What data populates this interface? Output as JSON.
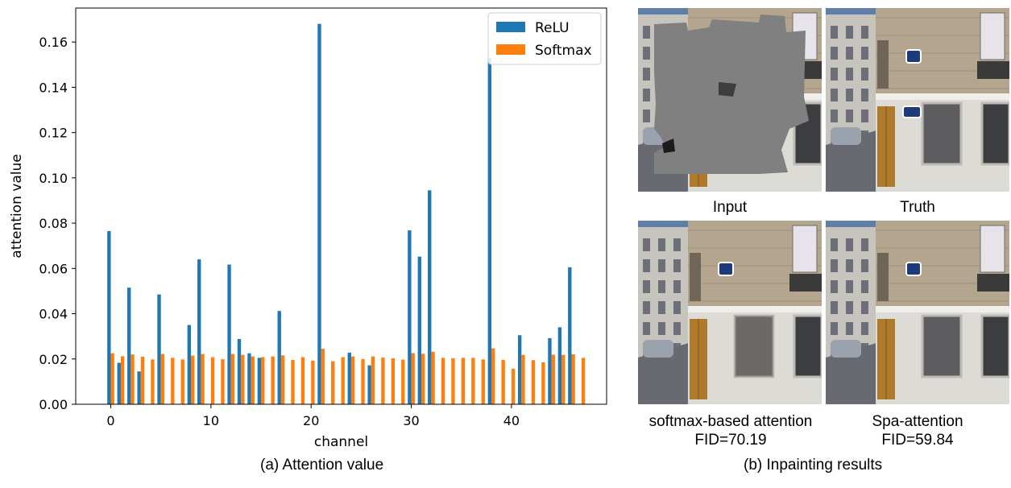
{
  "chart_data": {
    "type": "bar",
    "xlabel": "channel",
    "ylabel": "attention value",
    "xlim": [
      -3.5,
      49.5
    ],
    "ylim": [
      0,
      0.175
    ],
    "xticks": [
      0,
      10,
      20,
      30,
      40
    ],
    "yticks": [
      0.0,
      0.02,
      0.04,
      0.06,
      0.08,
      0.1,
      0.12,
      0.14,
      0.16
    ],
    "ytick_labels": [
      "0.00",
      "0.02",
      "0.04",
      "0.06",
      "0.08",
      "0.10",
      "0.12",
      "0.14",
      "0.16"
    ],
    "legend_position": "top-right",
    "series": [
      {
        "name": "ReLU",
        "color": "#1f77b4",
        "values": [
          0.0765,
          0.0183,
          0.0515,
          0.0145,
          0,
          0.0485,
          0,
          0,
          0.035,
          0.064,
          0,
          0,
          0.0617,
          0.0288,
          0.0225,
          0.0205,
          0,
          0.0412,
          0,
          0,
          0,
          0.168,
          0,
          0,
          0.0228,
          0,
          0.0172,
          0,
          0,
          0,
          0.0768,
          0.0652,
          0.0945,
          0,
          0,
          0,
          0,
          0,
          0.153,
          0,
          0,
          0.0305,
          0,
          0,
          0.0292,
          0.034,
          0.0605,
          0
        ]
      },
      {
        "name": "Softmax",
        "color": "#ff7f0e",
        "values": [
          0.0225,
          0.0212,
          0.022,
          0.021,
          0.0198,
          0.0222,
          0.0205,
          0.0198,
          0.0215,
          0.0222,
          0.0208,
          0.0199,
          0.0222,
          0.0218,
          0.0211,
          0.0208,
          0.0211,
          0.0216,
          0.0196,
          0.0208,
          0.0193,
          0.0245,
          0.019,
          0.0208,
          0.0211,
          0.02,
          0.0211,
          0.0206,
          0.0203,
          0.0197,
          0.0226,
          0.0223,
          0.0232,
          0.0205,
          0.0203,
          0.0205,
          0.0205,
          0.0198,
          0.0247,
          0.0196,
          0.0157,
          0.0218,
          0.0195,
          0.0185,
          0.0219,
          0.0218,
          0.0221,
          0.0205
        ]
      }
    ]
  },
  "captions": {
    "left": "(a) Attention value",
    "right": "(b) Inpainting results"
  },
  "panels": {
    "input": {
      "label": "Input"
    },
    "truth": {
      "label": "Truth"
    },
    "softmax": {
      "label": "softmax-based attention",
      "fid": "FID=70.19"
    },
    "spa": {
      "label": "Spa-attention",
      "fid": "FID=59.84"
    }
  },
  "colors": {
    "sky": "#5f7fa6",
    "stone": "#b3a58e",
    "white_wall": "#dddbd6",
    "mask_gray": "#808080",
    "door_wood": "#b07a2c",
    "sign_blue": "#1d3b7a"
  }
}
